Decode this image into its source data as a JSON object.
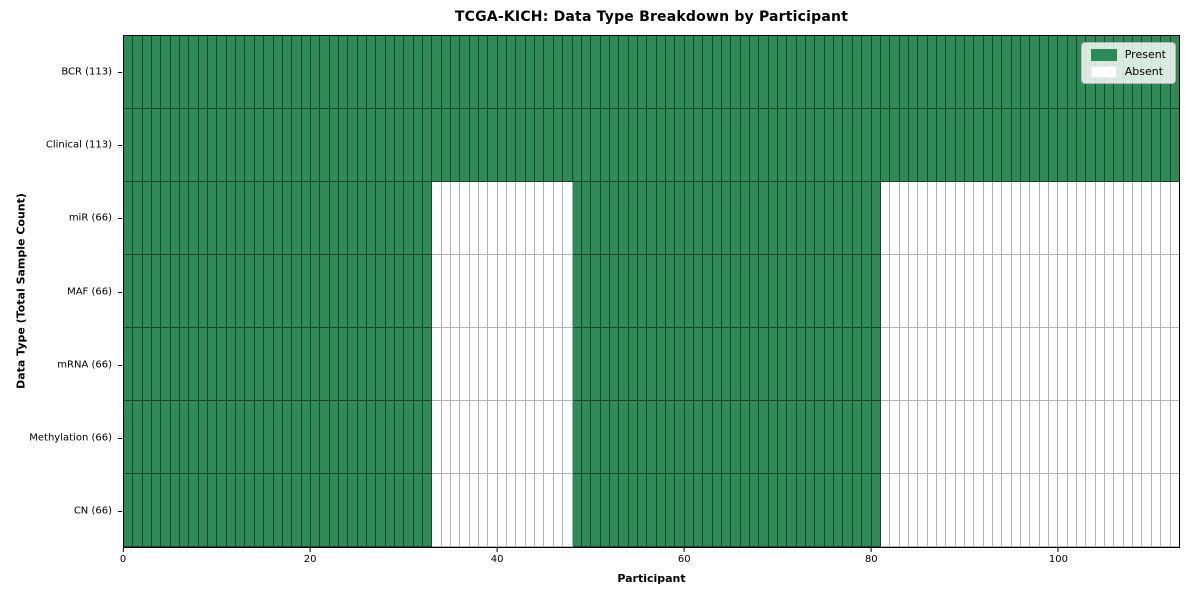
{
  "chart_data": {
    "type": "heatmap",
    "title": "TCGA-KICH: Data Type Breakdown by Participant",
    "xlabel": "Participant",
    "ylabel": "Data Type (Total Sample Count)",
    "n_participants": 113,
    "xlim": [
      0,
      113
    ],
    "x_ticks": [
      0,
      20,
      40,
      60,
      80,
      100
    ],
    "grid": false,
    "rows": [
      {
        "label": "BCR (113)",
        "total": 113,
        "present_ranges": [
          [
            0,
            113
          ]
        ]
      },
      {
        "label": "Clinical (113)",
        "total": 113,
        "present_ranges": [
          [
            0,
            113
          ]
        ]
      },
      {
        "label": "miR (66)",
        "total": 66,
        "present_ranges": [
          [
            0,
            33
          ],
          [
            48,
            81
          ]
        ]
      },
      {
        "label": "MAF (66)",
        "total": 66,
        "present_ranges": [
          [
            0,
            33
          ],
          [
            48,
            81
          ]
        ]
      },
      {
        "label": "mRNA (66)",
        "total": 66,
        "present_ranges": [
          [
            0,
            33
          ],
          [
            48,
            81
          ]
        ]
      },
      {
        "label": "Methylation (66)",
        "total": 66,
        "present_ranges": [
          [
            0,
            33
          ],
          [
            48,
            81
          ]
        ]
      },
      {
        "label": "CN (66)",
        "total": 66,
        "present_ranges": [
          [
            0,
            33
          ],
          [
            48,
            81
          ]
        ]
      }
    ],
    "legend": {
      "position": "upper right",
      "entries": [
        {
          "label": "Present",
          "color": "#2e8b57"
        },
        {
          "label": "Absent",
          "color": "#ffffff"
        }
      ]
    },
    "colors": {
      "present": "#2e8b57",
      "absent": "#ffffff",
      "cell_edge": "#000000",
      "spine": "#000000",
      "legend_border": "#b5b5b5"
    }
  }
}
